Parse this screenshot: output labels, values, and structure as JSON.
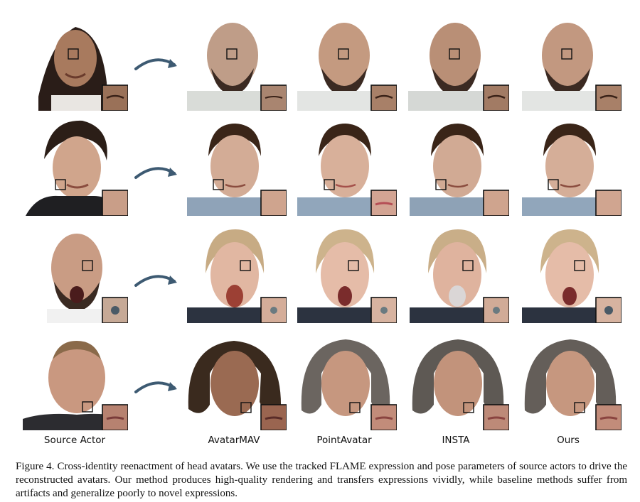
{
  "column_labels": [
    "Source Actor",
    "AvatarMAV",
    "PointAvatar",
    "INSTA",
    "Ours"
  ],
  "caption": {
    "figure_number": "Figure 4.",
    "text": "Cross-identity reenactment of head avatars. We use the tracked FLAME expression and pose parameters of source actors to drive the reconstructed avatars. Our method produces high-quality rendering and transfers expressions vividly, while baseline methods suffer from artifacts and generalize poorly to novel expressions."
  },
  "rows": [
    {
      "source": "young woman smiling",
      "target": "bald man with beard",
      "zoom_region": "eye"
    },
    {
      "source": "man with dark hair",
      "target": "man with short brown hair",
      "zoom_region": "cheek"
    },
    {
      "source": "bald bearded man surprised",
      "target": "woman with blonde hair, open mouth",
      "zoom_region": "eye"
    },
    {
      "source": "older balding man",
      "target": "woman with grey bob haircut",
      "zoom_region": "mouth"
    }
  ],
  "colors": {
    "arrow": "#3d5a72",
    "box": "#111111"
  }
}
